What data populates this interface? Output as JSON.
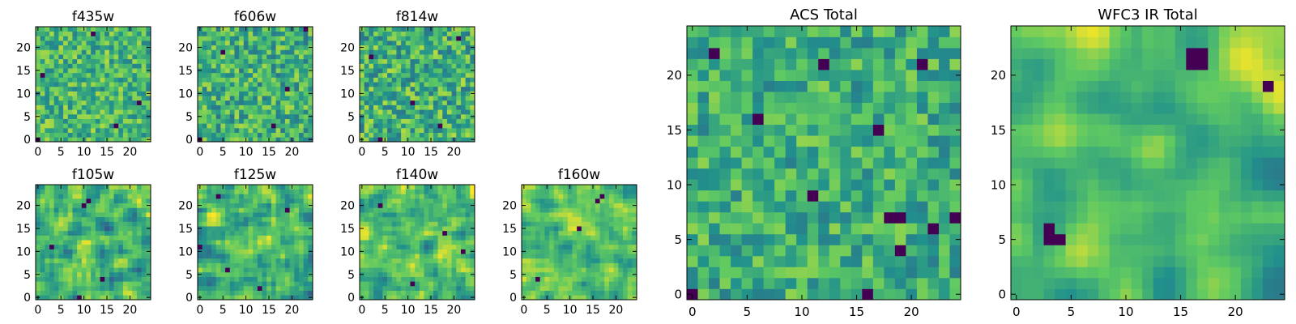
{
  "chart_data": {
    "type": "heatmap",
    "grid_size": 25,
    "colormap": "viridis",
    "colormap_stops": [
      "#440154",
      "#3b528b",
      "#21918c",
      "#5ec962",
      "#fde725"
    ],
    "value_range": [
      0,
      1
    ],
    "panels": [
      {
        "key": "f435w",
        "title": "f435w",
        "xticks": [
          0,
          5,
          10,
          15,
          20
        ],
        "yticks": [
          0,
          5,
          10,
          15,
          20
        ],
        "xlim": [
          0,
          25
        ],
        "ylim": [
          0,
          25
        ],
        "seed": 11,
        "smooth": 0,
        "mean": 0.66,
        "spread": 0.13,
        "dark_pixels": [
          [
            0,
            0
          ],
          [
            22,
            8
          ],
          [
            12,
            23
          ],
          [
            1,
            14
          ],
          [
            17,
            3
          ]
        ]
      },
      {
        "key": "f606w",
        "title": "f606w",
        "xticks": [
          0,
          5,
          10,
          15,
          20
        ],
        "yticks": [
          0,
          5,
          10,
          15,
          20
        ],
        "xlim": [
          0,
          25
        ],
        "ylim": [
          0,
          25
        ],
        "seed": 23,
        "smooth": 0,
        "mean": 0.64,
        "spread": 0.14,
        "dark_pixels": [
          [
            23,
            24
          ],
          [
            0,
            0
          ],
          [
            16,
            3
          ],
          [
            5,
            19
          ],
          [
            19,
            11
          ]
        ]
      },
      {
        "key": "f814w",
        "title": "f814w",
        "xticks": [
          0,
          5,
          10,
          15,
          20
        ],
        "yticks": [
          0,
          5,
          10,
          15,
          20
        ],
        "xlim": [
          0,
          25
        ],
        "ylim": [
          0,
          25
        ],
        "seed": 37,
        "smooth": 0,
        "mean": 0.63,
        "spread": 0.15,
        "dark_pixels": [
          [
            4,
            0
          ],
          [
            17,
            3
          ],
          [
            2,
            18
          ],
          [
            21,
            22
          ],
          [
            11,
            8
          ]
        ]
      },
      {
        "key": "f105w",
        "title": "f105w",
        "xticks": [
          0,
          5,
          10,
          15,
          20
        ],
        "yticks": [
          0,
          5,
          10,
          15,
          20
        ],
        "xlim": [
          0,
          25
        ],
        "ylim": [
          0,
          25
        ],
        "seed": 41,
        "smooth": 1,
        "mean": 0.66,
        "spread": 0.12,
        "dark_pixels": [
          [
            14,
            4
          ],
          [
            10,
            20
          ],
          [
            11,
            21
          ],
          [
            3,
            11
          ],
          [
            9,
            0
          ]
        ]
      },
      {
        "key": "f125w",
        "title": "f125w",
        "xticks": [
          0,
          5,
          10,
          15,
          20
        ],
        "yticks": [
          0,
          5,
          10,
          15,
          20
        ],
        "xlim": [
          0,
          25
        ],
        "ylim": [
          0,
          25
        ],
        "seed": 53,
        "smooth": 1,
        "mean": 0.65,
        "spread": 0.12,
        "dark_pixels": [
          [
            6,
            6
          ],
          [
            4,
            22
          ],
          [
            0,
            11
          ],
          [
            19,
            19
          ],
          [
            13,
            2
          ]
        ]
      },
      {
        "key": "f140w",
        "title": "f140w",
        "xticks": [
          0,
          5,
          10,
          15,
          20
        ],
        "yticks": [
          0,
          5,
          10,
          15,
          20
        ],
        "xlim": [
          0,
          25
        ],
        "ylim": [
          0,
          25
        ],
        "seed": 67,
        "smooth": 1,
        "mean": 0.69,
        "spread": 0.11,
        "dark_pixels": [
          [
            22,
            10
          ],
          [
            4,
            20
          ],
          [
            18,
            14
          ],
          [
            11,
            3
          ]
        ]
      },
      {
        "key": "f160w",
        "title": "f160w",
        "xticks": [
          0,
          5,
          10,
          15,
          20
        ],
        "yticks": [
          0,
          5,
          10,
          15,
          20
        ],
        "xlim": [
          0,
          25
        ],
        "ylim": [
          0,
          25
        ],
        "seed": 79,
        "smooth": 1,
        "mean": 0.71,
        "spread": 0.1,
        "dark_pixels": [
          [
            3,
            4
          ],
          [
            16,
            21
          ],
          [
            17,
            22
          ],
          [
            12,
            15
          ]
        ]
      },
      {
        "key": "acs_total",
        "title": "ACS Total",
        "xticks": [
          0,
          5,
          10,
          15,
          20
        ],
        "yticks": [
          0,
          5,
          10,
          15,
          20
        ],
        "xlim": [
          0,
          25
        ],
        "ylim": [
          0,
          25
        ],
        "seed": 97,
        "smooth": 0,
        "mean": 0.63,
        "spread": 0.12,
        "dark_pixels": [
          [
            0,
            0
          ],
          [
            2,
            22
          ],
          [
            6,
            16
          ],
          [
            12,
            21
          ],
          [
            17,
            15
          ],
          [
            11,
            9
          ],
          [
            18,
            7
          ],
          [
            19,
            7
          ],
          [
            24,
            7
          ],
          [
            22,
            6
          ],
          [
            19,
            4
          ],
          [
            16,
            0
          ],
          [
            21,
            21
          ]
        ]
      },
      {
        "key": "wfc3_total",
        "title": "WFC3 IR Total",
        "xticks": [
          0,
          5,
          10,
          15,
          20
        ],
        "yticks": [
          0,
          5,
          10,
          15,
          20
        ],
        "xlim": [
          0,
          25
        ],
        "ylim": [
          0,
          25
        ],
        "seed": 113,
        "smooth": 2,
        "mean": 0.68,
        "spread": 0.1,
        "dark_pixels": [
          [
            16,
            22
          ],
          [
            17,
            22
          ],
          [
            16,
            21
          ],
          [
            17,
            21
          ],
          [
            3,
            6
          ],
          [
            3,
            5
          ],
          [
            4,
            5
          ],
          [
            23,
            19
          ]
        ]
      }
    ]
  }
}
